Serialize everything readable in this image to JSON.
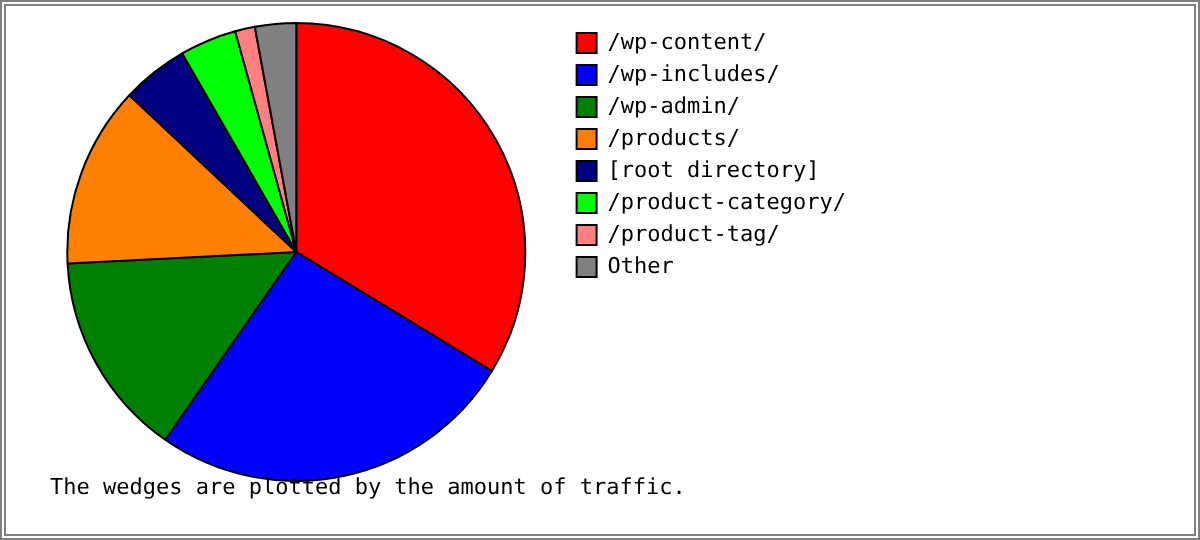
{
  "chart_data": {
    "type": "pie",
    "categories": [
      "/wp-content/",
      "/wp-includes/",
      "/wp-admin/",
      "/products/",
      "[root directory]",
      "/product-category/",
      "/product-tag/",
      "Other"
    ],
    "values": [
      33.7,
      26,
      14.5,
      12.8,
      4.7,
      4,
      1.4,
      2.9
    ],
    "colors": [
      "#ff0000",
      "#0000ff",
      "#008000",
      "#ff8000",
      "#000080",
      "#00ff00",
      "#ff8080",
      "#808080"
    ],
    "legend": "right",
    "annotations": [
      "The wedges are plotted by the amount of traffic."
    ]
  }
}
